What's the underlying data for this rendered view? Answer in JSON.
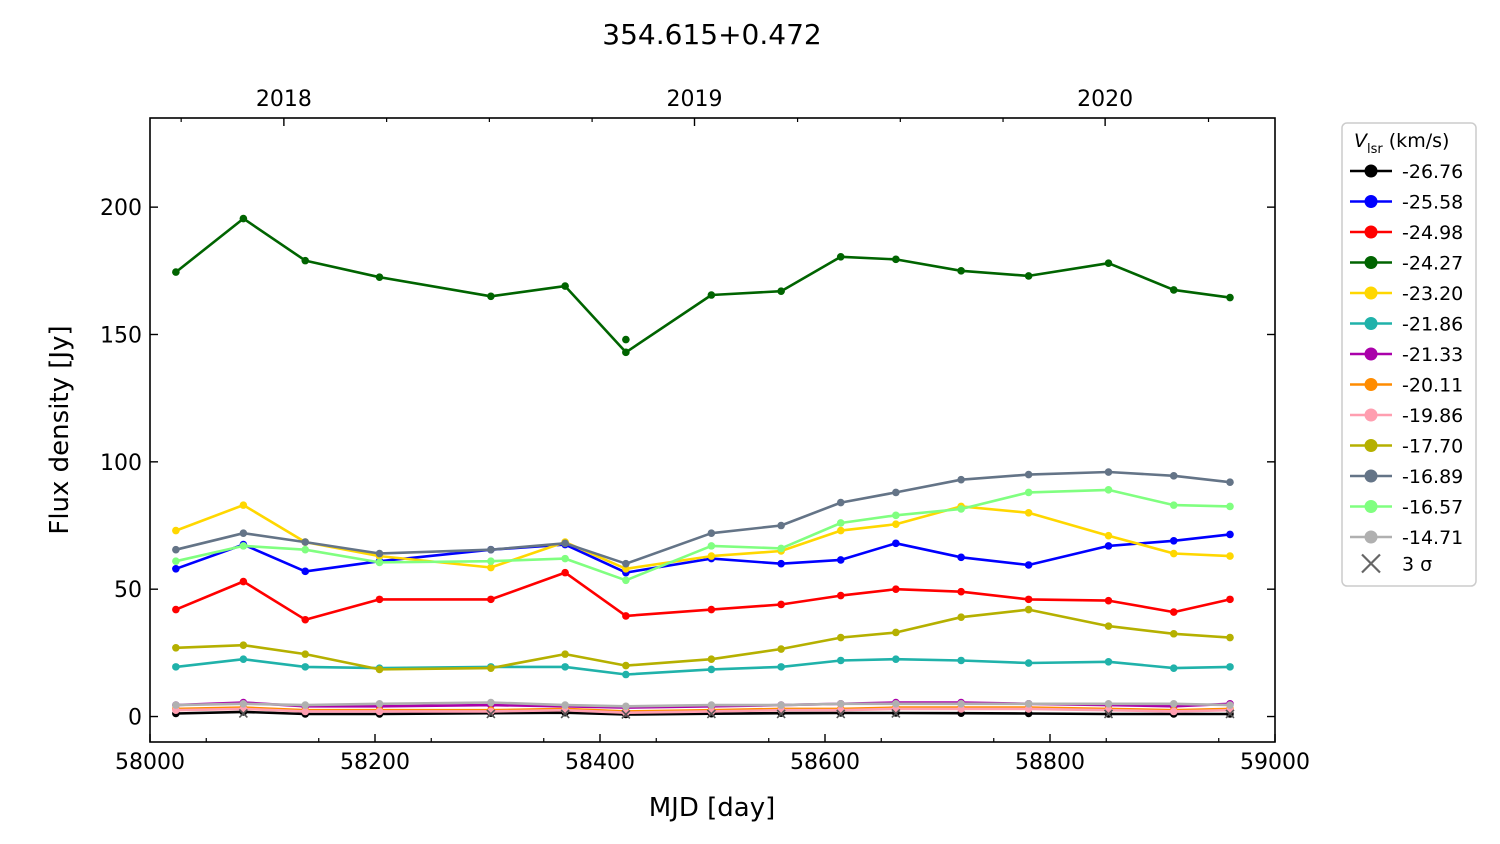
{
  "chart_data": {
    "type": "line",
    "title": "354.615+0.472",
    "xlabel": "MJD [day]",
    "ylabel": "Flux density [Jy]",
    "xlim": [
      58000,
      59000
    ],
    "ylim": [
      -10,
      235
    ],
    "xticks": [
      58000,
      58200,
      58400,
      58600,
      58800,
      59000
    ],
    "xtick_labels": [
      "58000",
      "58200",
      "58400",
      "58600",
      "58800",
      "59000"
    ],
    "yticks": [
      0,
      50,
      100,
      150,
      200
    ],
    "ytick_labels": [
      "0",
      "50",
      "100",
      "150",
      "200"
    ],
    "top_axis": {
      "ticks": [
        58119,
        58484,
        58849
      ],
      "labels": [
        "2018",
        "2019",
        "2020"
      ]
    },
    "legend": {
      "position": "outside-right",
      "title_main": "V",
      "title_sub": "lsr",
      "title_unit": " (km/s)",
      "sigma_label": "3 σ"
    },
    "x": [
      58023,
      58083,
      58138,
      58204,
      58303,
      58369,
      58423,
      58499,
      58561,
      58614,
      58663,
      58721,
      58781,
      58852,
      58910,
      58960
    ],
    "series": [
      {
        "name": "-26.76",
        "color": "#000000",
        "values": [
          1.2,
          1.8,
          1.0,
          1.0,
          1.3,
          1.5,
          0.8,
          1.1,
          1.3,
          1.4,
          1.4,
          1.3,
          1.2,
          1.0,
          1.0,
          1.0
        ]
      },
      {
        "name": "-25.58",
        "color": "#0000ff",
        "values": [
          58.0,
          67.5,
          57.0,
          61.0,
          65.5,
          67.5,
          56.5,
          62.0,
          60.0,
          61.5,
          68.0,
          62.5,
          59.5,
          67.0,
          69.0,
          71.5
        ]
      },
      {
        "name": "-24.98",
        "color": "#ff0000",
        "values": [
          42.0,
          53.0,
          38.0,
          46.0,
          46.0,
          56.5,
          39.5,
          42.0,
          44.0,
          47.5,
          50.0,
          49.0,
          46.0,
          45.5,
          41.0,
          46.0
        ]
      },
      {
        "name": "-24.27",
        "color": "#006400",
        "values": [
          174.5,
          195.5,
          179.0,
          172.5,
          165.0,
          169.0,
          143.0,
          165.5,
          167.0,
          180.5,
          179.5,
          175.0,
          173.0,
          178.0,
          167.5,
          164.5
        ]
      },
      {
        "name": "-23.20",
        "color": "#ffd700",
        "values": [
          73.0,
          83.0,
          68.5,
          63.0,
          58.5,
          68.5,
          58.0,
          63.0,
          65.0,
          73.0,
          75.5,
          82.5,
          80.0,
          71.0,
          64.0,
          63.0
        ]
      },
      {
        "name": "-21.86",
        "color": "#20b2aa",
        "values": [
          19.5,
          22.5,
          19.5,
          19.0,
          19.5,
          19.5,
          16.5,
          18.5,
          19.5,
          22.0,
          22.5,
          22.0,
          21.0,
          21.5,
          19.0,
          19.5
        ]
      },
      {
        "name": "-21.33",
        "color": "#aa00aa",
        "values": [
          4.5,
          5.5,
          4.0,
          4.0,
          4.5,
          4.0,
          3.5,
          4.0,
          4.5,
          5.0,
          5.5,
          5.5,
          5.0,
          4.5,
          4.0,
          5.0
        ]
      },
      {
        "name": "-20.11",
        "color": "#ff8c00",
        "values": [
          3.0,
          3.5,
          2.5,
          2.5,
          2.5,
          3.0,
          2.0,
          2.5,
          3.0,
          3.0,
          3.5,
          3.5,
          3.5,
          3.0,
          2.5,
          3.0
        ]
      },
      {
        "name": "-19.86",
        "color": "#ff9eb0",
        "values": [
          2.5,
          3.0,
          2.0,
          2.0,
          2.0,
          2.5,
          1.5,
          2.0,
          2.5,
          2.5,
          3.0,
          3.0,
          3.0,
          2.5,
          2.0,
          2.5
        ]
      },
      {
        "name": "-17.70",
        "color": "#b5b000",
        "values": [
          27.0,
          28.0,
          24.5,
          18.5,
          19.0,
          24.5,
          20.0,
          22.5,
          26.5,
          31.0,
          33.0,
          39.0,
          42.0,
          35.5,
          32.5,
          31.0
        ]
      },
      {
        "name": "-16.89",
        "color": "#647487",
        "values": [
          65.5,
          72.0,
          68.5,
          64.0,
          65.5,
          68.0,
          60.0,
          72.0,
          75.0,
          84.0,
          88.0,
          93.0,
          95.0,
          96.0,
          94.5,
          92.0
        ]
      },
      {
        "name": "-16.57",
        "color": "#80ff80",
        "values": [
          61.0,
          67.0,
          65.5,
          60.5,
          61.0,
          62.0,
          53.5,
          67.0,
          66.0,
          76.0,
          79.0,
          81.5,
          88.0,
          89.0,
          83.0,
          82.5
        ]
      },
      {
        "name": "-14.71",
        "color": "#b0b0b0",
        "values": [
          4.5,
          5.0,
          4.5,
          5.0,
          5.5,
          4.5,
          4.0,
          4.5,
          4.5,
          5.0,
          5.0,
          5.0,
          5.0,
          5.0,
          5.0,
          4.5
        ]
      }
    ],
    "sigma_markers": {
      "x": [
        58083,
        58303,
        58369,
        58423,
        58499,
        58561,
        58614,
        58663,
        58852,
        58960
      ],
      "y": [
        1.2,
        1.0,
        1.0,
        0.8,
        1.0,
        1.0,
        1.0,
        1.2,
        1.0,
        1.0
      ]
    },
    "extra_points": [
      {
        "series": "-24.27",
        "x": 58423,
        "y": 148.0
      }
    ],
    "grid": false
  }
}
